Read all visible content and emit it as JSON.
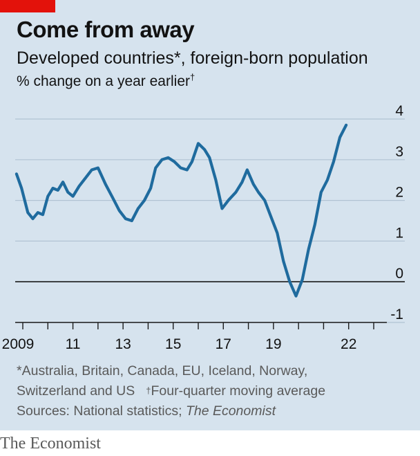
{
  "header": {
    "title": "Come from away",
    "subtitle": "Developed countries*, foreign-born population",
    "units": "% change on a year earlier",
    "units_mark": "†"
  },
  "footer": {
    "note_line1": "*Australia, Britain, Canada, EU, Iceland, Norway,",
    "note_line2_main": "Switzerland and US",
    "note_line2_mark": "†",
    "note_line2_rest": "Four-quarter moving average",
    "sources_prefix": "Sources: National statistics; ",
    "sources_italic": "The Economist",
    "brand": "The Economist"
  },
  "colors": {
    "background": "#d6e3ee",
    "line": "#1f6b9e",
    "tag": "#e3120b"
  },
  "chart_data": {
    "type": "line",
    "ylim": [
      -1,
      4
    ],
    "y_ticks": [
      -1,
      0,
      1,
      2,
      3,
      4
    ],
    "y_tick_labels": [
      "-1",
      "0",
      "1",
      "2",
      "3",
      "4"
    ],
    "xlim": [
      2009,
      2023
    ],
    "x_ticks": [
      2009,
      2010,
      2011,
      2012,
      2013,
      2014,
      2015,
      2016,
      2017,
      2018,
      2019,
      2020,
      2021,
      2022,
      2023
    ],
    "x_tick_labels": [
      {
        "x": 2009,
        "label": "2009"
      },
      {
        "x": 2011,
        "label": "11"
      },
      {
        "x": 2013,
        "label": "13"
      },
      {
        "x": 2015,
        "label": "15"
      },
      {
        "x": 2017,
        "label": "17"
      },
      {
        "x": 2019,
        "label": "19"
      },
      {
        "x": 2022,
        "label": "22"
      }
    ],
    "grid": true,
    "series": [
      {
        "values": [
          [
            2008.75,
            2.65
          ],
          [
            2008.95,
            2.3
          ],
          [
            2009.2,
            1.7
          ],
          [
            2009.4,
            1.55
          ],
          [
            2009.6,
            1.7
          ],
          [
            2009.8,
            1.65
          ],
          [
            2010.0,
            2.1
          ],
          [
            2010.2,
            2.3
          ],
          [
            2010.4,
            2.25
          ],
          [
            2010.6,
            2.45
          ],
          [
            2010.8,
            2.2
          ],
          [
            2011.0,
            2.1
          ],
          [
            2011.25,
            2.35
          ],
          [
            2011.5,
            2.55
          ],
          [
            2011.75,
            2.75
          ],
          [
            2012.0,
            2.8
          ],
          [
            2012.3,
            2.4
          ],
          [
            2012.6,
            2.05
          ],
          [
            2012.85,
            1.75
          ],
          [
            2013.1,
            1.55
          ],
          [
            2013.35,
            1.5
          ],
          [
            2013.6,
            1.8
          ],
          [
            2013.85,
            2.0
          ],
          [
            2014.1,
            2.3
          ],
          [
            2014.3,
            2.8
          ],
          [
            2014.55,
            3.0
          ],
          [
            2014.8,
            3.05
          ],
          [
            2015.05,
            2.95
          ],
          [
            2015.3,
            2.8
          ],
          [
            2015.55,
            2.75
          ],
          [
            2015.75,
            2.95
          ],
          [
            2016.0,
            3.4
          ],
          [
            2016.25,
            3.25
          ],
          [
            2016.45,
            3.05
          ],
          [
            2016.7,
            2.5
          ],
          [
            2016.95,
            1.8
          ],
          [
            2017.2,
            2.0
          ],
          [
            2017.5,
            2.2
          ],
          [
            2017.75,
            2.45
          ],
          [
            2017.95,
            2.75
          ],
          [
            2018.2,
            2.4
          ],
          [
            2018.4,
            2.2
          ],
          [
            2018.65,
            2.0
          ],
          [
            2018.9,
            1.6
          ],
          [
            2019.15,
            1.2
          ],
          [
            2019.4,
            0.5
          ],
          [
            2019.65,
            0.0
          ],
          [
            2019.9,
            -0.35
          ],
          [
            2020.15,
            0.05
          ],
          [
            2020.4,
            0.8
          ],
          [
            2020.65,
            1.4
          ],
          [
            2020.9,
            2.2
          ],
          [
            2021.15,
            2.5
          ],
          [
            2021.4,
            2.95
          ],
          [
            2021.65,
            3.55
          ],
          [
            2021.9,
            3.85
          ]
        ]
      }
    ]
  }
}
